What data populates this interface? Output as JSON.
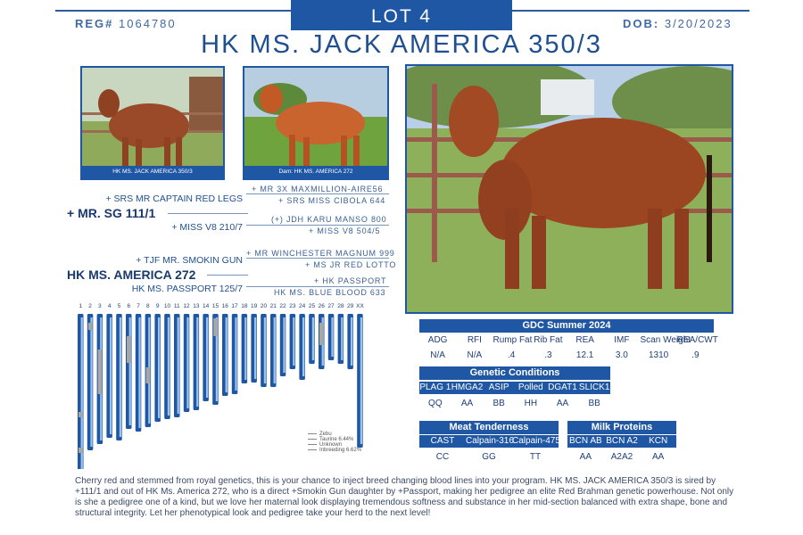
{
  "header": {
    "lot": "LOT 4",
    "reg_label": "REG#",
    "reg_number": "1064780",
    "dob_label": "DOB:",
    "dob_value": "3/20/2023",
    "animal_name": "HK MS. JACK AMERICA 350/3"
  },
  "colors": {
    "primary": "#1f57a4",
    "light": "#9cc4ec",
    "gray": "#a7a7a7"
  },
  "photos": [
    {
      "caption": "HK MS. JACK AMERICA 350/3"
    },
    {
      "caption": "Dam: HK MS. AMERICA 272"
    },
    {
      "caption": ""
    }
  ],
  "pedigree": {
    "sire": "+ MR. SG 111/1",
    "sire_sire": "+ SRS MR CAPTAIN RED LEGS",
    "sire_sire_sire": "+ MR 3X MAXMILLION-AIRE56",
    "sire_sire_dam": "+ SRS MISS CIBOLA 644",
    "sire_dam": "+ MISS V8 210/7",
    "sire_dam_sire": "(+) JDH KARU MANSO 800",
    "sire_dam_dam": "+ MISS V8 504/5",
    "dam": "HK MS. AMERICA 272",
    "dam_sire": "+ TJF MR. SMOKIN GUN",
    "dam_sire_sire": "+ MR WINCHESTER MAGNUM 999",
    "dam_sire_dam": "+ MS JR RED LOTTO",
    "dam_dam": "HK MS. PASSPORT 125/7",
    "dam_dam_sire": "+ HK PASSPORT",
    "dam_dam_dam": "HK MS. BLUE BLOOD 633"
  },
  "chromosome_labels": [
    "1",
    "2",
    "3",
    "4",
    "5",
    "6",
    "7",
    "8",
    "9",
    "10",
    "11",
    "12",
    "13",
    "14",
    "15",
    "16",
    "17",
    "18",
    "19",
    "20",
    "21",
    "22",
    "23",
    "24",
    "25",
    "26",
    "27",
    "28",
    "29",
    "XX"
  ],
  "chromosome_lengths": [
    182,
    153,
    146,
    139,
    142,
    129,
    132,
    127,
    121,
    118,
    116,
    110,
    108,
    98,
    102,
    92,
    90,
    78,
    77,
    82,
    82,
    70,
    62,
    74,
    56,
    62,
    52,
    56,
    62,
    150
  ],
  "legend": [
    {
      "label": "Zebu"
    },
    {
      "label": "Taurine 6.44%"
    },
    {
      "label": "Unknown"
    },
    {
      "label": "Inbreeding 6.62%"
    }
  ],
  "gdc": {
    "title": "GDC Summer 2024",
    "headers": [
      "ADG",
      "RFI",
      "Rump Fat",
      "Rib Fat",
      "REA",
      "IMF",
      "Scan Weight",
      "REA/CWT"
    ],
    "values": [
      "N/A",
      "N/A",
      ".4",
      ".3",
      "12.1",
      "3.0",
      "1310",
      ".9"
    ]
  },
  "genetic": {
    "title": "Genetic Conditions",
    "headers": [
      "PLAG 1",
      "HMGA2",
      "ASIP",
      "Polled",
      "DGAT1",
      "SLICK1"
    ],
    "values": [
      "QQ",
      "AA",
      "BB",
      "HH",
      "AA",
      "BB"
    ]
  },
  "meat": {
    "title": "Meat Tenderness",
    "headers": [
      "CAST",
      "Calpain-316",
      "Calpain-4751"
    ],
    "values": [
      "CC",
      "GG",
      "TT"
    ]
  },
  "milk": {
    "title": "Milk Proteins",
    "headers": [
      "BCN AB",
      "BCN A2",
      "KCN"
    ],
    "values": [
      "AA",
      "A2A2",
      "AA"
    ]
  },
  "description": "Cherry red and stemmed from royal genetics, this is your chance to inject breed changing blood lines into your program. HK MS. JACK AMERICA 350/3 is sired by +111/1 and out of HK Ms. America 272, who is a direct +Smokin Gun daughter by +Passport, making her pedigree an elite Red Brahman genetic powerhouse. Not only is she a pedigree one of a kind, but we love her maternal look displaying tremendous softness and substance in her mid-section balanced with extra shape, bone and structural integrity. Let her phenotypical look and pedigree take your herd to the next level!"
}
